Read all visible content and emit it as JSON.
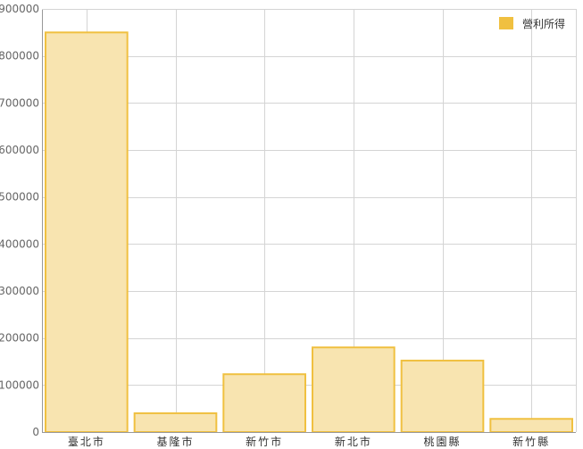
{
  "chart_data": {
    "type": "bar",
    "categories": [
      "臺北市",
      "基隆市",
      "新竹市",
      "新北市",
      "桃園縣",
      "新竹縣"
    ],
    "series": [
      {
        "name": "營利所得",
        "values": [
          850000,
          40000,
          123000,
          180000,
          152000,
          28000
        ]
      }
    ],
    "ylim": [
      0,
      900000
    ],
    "yticks": [
      0,
      100000,
      200000,
      300000,
      400000,
      500000,
      600000,
      700000,
      800000,
      900000
    ],
    "grid": true,
    "legend": "top-right",
    "colors": {
      "bar_fill": "#f8e4b0",
      "bar_stroke": "#f0c040",
      "grid": "#d4d4d4",
      "axis": "#999999"
    }
  }
}
